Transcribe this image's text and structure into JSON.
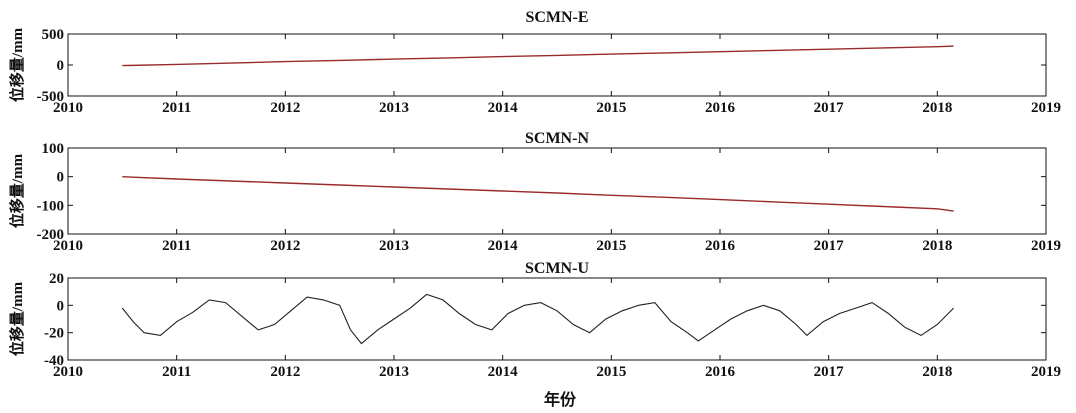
{
  "xlabel": "年份",
  "colors": {
    "line": "#222222",
    "trend": "#9a2b2b",
    "axis": "#111111"
  },
  "chart_data": [
    {
      "type": "line",
      "title": "SCMN-E",
      "ylabel": "位移量/mm",
      "xlim": [
        2010,
        2019
      ],
      "ylim": [
        -500,
        500
      ],
      "xticks": [
        2010,
        2011,
        2012,
        2013,
        2014,
        2015,
        2016,
        2017,
        2018,
        2019
      ],
      "yticks": [
        -500,
        0,
        500
      ],
      "grid": false,
      "series": [
        {
          "x": [
            2010.5,
            2011.0,
            2011.5,
            2012.0,
            2012.5,
            2013.0,
            2013.5,
            2014.0,
            2014.5,
            2015.0,
            2015.5,
            2016.0,
            2016.5,
            2017.0,
            2017.5,
            2018.0,
            2018.15
          ],
          "y": [
            -10,
            10,
            30,
            55,
            75,
            95,
            115,
            135,
            155,
            175,
            195,
            215,
            235,
            255,
            275,
            295,
            305
          ]
        }
      ]
    },
    {
      "type": "line",
      "title": "SCMN-N",
      "ylabel": "位移量/mm",
      "xlim": [
        2010,
        2019
      ],
      "ylim": [
        -200,
        100
      ],
      "xticks": [
        2010,
        2011,
        2012,
        2013,
        2014,
        2015,
        2016,
        2017,
        2018,
        2019
      ],
      "yticks": [
        -200,
        -100,
        0,
        100
      ],
      "grid": false,
      "series": [
        {
          "x": [
            2010.5,
            2011.0,
            2011.5,
            2012.0,
            2012.5,
            2013.0,
            2013.5,
            2014.0,
            2014.5,
            2015.0,
            2015.5,
            2016.0,
            2016.5,
            2017.0,
            2017.5,
            2018.0,
            2018.15
          ],
          "y": [
            0,
            -8,
            -15,
            -22,
            -29,
            -36,
            -43,
            -50,
            -57,
            -65,
            -72,
            -80,
            -88,
            -96,
            -104,
            -112,
            -120
          ]
        }
      ]
    },
    {
      "type": "line",
      "title": "SCMN-U",
      "ylabel": "位移量/mm",
      "xlim": [
        2010,
        2019
      ],
      "ylim": [
        -40,
        20
      ],
      "xticks": [
        2010,
        2011,
        2012,
        2013,
        2014,
        2015,
        2016,
        2017,
        2018,
        2019
      ],
      "yticks": [
        -40,
        -20,
        0,
        20
      ],
      "grid": false,
      "series": [
        {
          "x": [
            2010.5,
            2010.6,
            2010.7,
            2010.85,
            2011.0,
            2011.15,
            2011.3,
            2011.45,
            2011.6,
            2011.75,
            2011.9,
            2012.05,
            2012.2,
            2012.35,
            2012.5,
            2012.6,
            2012.7,
            2012.85,
            2013.0,
            2013.15,
            2013.3,
            2013.45,
            2013.6,
            2013.75,
            2013.9,
            2014.05,
            2014.2,
            2014.35,
            2014.5,
            2014.65,
            2014.8,
            2014.95,
            2015.1,
            2015.25,
            2015.4,
            2015.55,
            2015.7,
            2015.8,
            2015.95,
            2016.1,
            2016.25,
            2016.4,
            2016.55,
            2016.7,
            2016.8,
            2016.95,
            2017.1,
            2017.25,
            2017.4,
            2017.55,
            2017.7,
            2017.85,
            2018.0,
            2018.15
          ],
          "y": [
            -2,
            -12,
            -20,
            -22,
            -12,
            -5,
            4,
            2,
            -8,
            -18,
            -14,
            -4,
            6,
            4,
            0,
            -18,
            -28,
            -18,
            -10,
            -2,
            8,
            4,
            -6,
            -14,
            -18,
            -6,
            0,
            2,
            -4,
            -14,
            -20,
            -10,
            -4,
            0,
            2,
            -12,
            -20,
            -26,
            -18,
            -10,
            -4,
            0,
            -4,
            -14,
            -22,
            -12,
            -6,
            -2,
            2,
            -6,
            -16,
            -22,
            -14,
            -2
          ]
        }
      ]
    }
  ]
}
